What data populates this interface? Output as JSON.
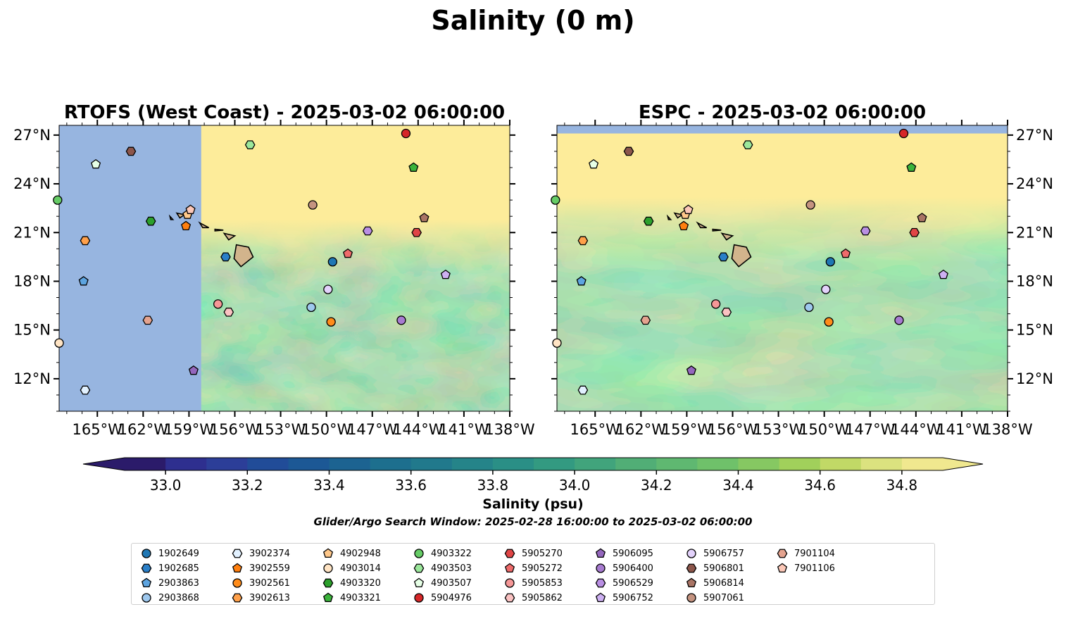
{
  "figure_title": "Salinity (0 m)",
  "colorbar": {
    "label": "Salinity (psu)",
    "min": 32.9,
    "max": 34.9,
    "step": 0.1,
    "tick_labels": [
      "33.0",
      "33.2",
      "33.4",
      "33.6",
      "33.8",
      "34.0",
      "34.2",
      "34.4",
      "34.6",
      "34.8"
    ],
    "colors": [
      "#2b1b6a",
      "#2e2f8f",
      "#2c3e98",
      "#214c98",
      "#1c5895",
      "#1c6391",
      "#1d6f8e",
      "#21798c",
      "#258489",
      "#2a8f86",
      "#339a81",
      "#41a47c",
      "#51ae76",
      "#5fb871",
      "#6fc16a",
      "#86c862",
      "#a1d05b",
      "#c1d966",
      "#dbe27f",
      "#f0e88f"
    ]
  },
  "search_window": "Glider/Argo Search Window: 2025-02-28 16:00:00 to 2025-03-02 06:00:00",
  "chart_data": [
    {
      "type": "heatmap",
      "title": "RTOFS (West Coast) - 2025-03-02 06:00:00",
      "xlim": [
        -167.5,
        -138
      ],
      "ylim": [
        10,
        27.6
      ],
      "x_ticks": [
        "165°W",
        "162°W",
        "159°W",
        "156°W",
        "153°W",
        "150°W",
        "147°W",
        "144°W",
        "141°W",
        "138°W"
      ],
      "y_ticks": [
        "12°N",
        "15°N",
        "18°N",
        "21°N",
        "24°N",
        "27°N"
      ],
      "y_axis_side": "left",
      "no_data_region": {
        "lon": [
          -167.5,
          -158.2
        ],
        "color": "#97b5e0"
      }
    },
    {
      "type": "heatmap",
      "title": "ESPC - 2025-03-02 06:00:00",
      "xlim": [
        -167.5,
        -138
      ],
      "ylim": [
        10,
        27.6
      ],
      "x_ticks": [
        "165°W",
        "162°W",
        "159°W",
        "156°W",
        "153°W",
        "150°W",
        "147°W",
        "144°W",
        "141°W",
        "138°W"
      ],
      "y_ticks": [
        "12°N",
        "15°N",
        "18°N",
        "21°N",
        "24°N",
        "27°N"
      ],
      "y_axis_side": "right",
      "no_data_region": {
        "lat": [
          27.1,
          27.6
        ],
        "color": "#97b5e0"
      }
    }
  ],
  "floats": [
    {
      "id": "1902649",
      "marker": "circle",
      "color": "#1f77b4",
      "lon": -149.6,
      "lat": 19.2
    },
    {
      "id": "1902685",
      "marker": "hexagon",
      "color": "#2a7fc8",
      "lon": -156.6,
      "lat": 19.5
    },
    {
      "id": "2903863",
      "marker": "pentagon",
      "color": "#5da4e0",
      "lon": -165.9,
      "lat": 18.0
    },
    {
      "id": "2903868",
      "marker": "circle",
      "color": "#9ec8ee",
      "lon": -151.0,
      "lat": 16.4
    },
    {
      "id": "3902374",
      "marker": "hexagon",
      "color": "#e2f1ff",
      "lon": -165.8,
      "lat": 11.3
    },
    {
      "id": "3902559",
      "marker": "pentagon",
      "color": "#ff7f0e",
      "lon": -159.2,
      "lat": 21.4
    },
    {
      "id": "3902561",
      "marker": "circle",
      "color": "#ff8c1a",
      "lon": -149.7,
      "lat": 15.5
    },
    {
      "id": "3902613",
      "marker": "hexagon",
      "color": "#ffa04a",
      "lon": -165.8,
      "lat": 20.5
    },
    {
      "id": "4902948",
      "marker": "pentagon",
      "color": "#ffc88a",
      "lon": -159.1,
      "lat": 22.1
    },
    {
      "id": "4903014",
      "marker": "circle",
      "color": "#ffe4c4",
      "lon": -167.5,
      "lat": 14.2
    },
    {
      "id": "4903320",
      "marker": "hexagon",
      "color": "#2ca02c",
      "lon": -161.5,
      "lat": 21.7
    },
    {
      "id": "4903321",
      "marker": "pentagon",
      "color": "#3bb33b",
      "lon": -144.3,
      "lat": 25.0
    },
    {
      "id": "4903322",
      "marker": "circle",
      "color": "#66cc66",
      "lon": -167.6,
      "lat": 23.0
    },
    {
      "id": "4903503",
      "marker": "hexagon",
      "color": "#9be79b",
      "lon": -155.0,
      "lat": 26.4
    },
    {
      "id": "4903507",
      "marker": "pentagon",
      "color": "#e6ffe6",
      "lon": -165.1,
      "lat": 25.2
    },
    {
      "id": "5904976",
      "marker": "circle",
      "color": "#d62728",
      "lon": -144.8,
      "lat": 27.1
    },
    {
      "id": "5905270",
      "marker": "hexagon",
      "color": "#e04546",
      "lon": -144.1,
      "lat": 21.0
    },
    {
      "id": "5905272",
      "marker": "pentagon",
      "color": "#ee6b6b",
      "lon": -148.6,
      "lat": 19.7
    },
    {
      "id": "5905853",
      "marker": "circle",
      "color": "#f59797",
      "lon": -157.1,
      "lat": 16.6
    },
    {
      "id": "5905862",
      "marker": "hexagon",
      "color": "#fac2c2",
      "lon": -156.4,
      "lat": 16.1
    },
    {
      "id": "5906095",
      "marker": "pentagon",
      "color": "#9467bd",
      "lon": -158.7,
      "lat": 12.5
    },
    {
      "id": "5906400",
      "marker": "circle",
      "color": "#a77bd0",
      "lon": -145.1,
      "lat": 15.6
    },
    {
      "id": "5906529",
      "marker": "hexagon",
      "color": "#b98fe3",
      "lon": -147.3,
      "lat": 21.1
    },
    {
      "id": "5906752",
      "marker": "pentagon",
      "color": "#cdb0f2",
      "lon": -142.2,
      "lat": 18.4
    },
    {
      "id": "5906757",
      "marker": "circle",
      "color": "#e3d2fb",
      "lon": -149.9,
      "lat": 17.5
    },
    {
      "id": "5906801",
      "marker": "hexagon",
      "color": "#8c564b",
      "lon": -162.8,
      "lat": 26.0
    },
    {
      "id": "5906814",
      "marker": "pentagon",
      "color": "#a97465",
      "lon": -143.6,
      "lat": 21.9
    },
    {
      "id": "5907061",
      "marker": "circle",
      "color": "#c49380",
      "lon": -150.9,
      "lat": 22.7
    },
    {
      "id": "7901104",
      "marker": "hexagon",
      "color": "#e4a38f",
      "lon": -161.7,
      "lat": 15.6
    },
    {
      "id": "7901106",
      "marker": "pentagon",
      "color": "#fcc8b8",
      "lon": -158.9,
      "lat": 22.4
    }
  ]
}
